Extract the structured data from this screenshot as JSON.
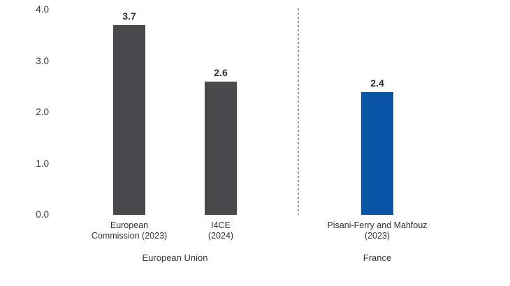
{
  "chart_data": {
    "type": "bar",
    "title": "",
    "xlabel": "",
    "ylabel": "",
    "ylim": [
      0,
      4
    ],
    "yticks": [
      0,
      1,
      2,
      3,
      4
    ],
    "grid": false,
    "legend": "none",
    "value_labels_shown": true,
    "groups": [
      {
        "label": "European Union",
        "bars": [
          {
            "label": "European\nCommission (2023)",
            "value": 3.7,
            "color": "#4A4A4C"
          },
          {
            "label": "I4CE\n(2024)",
            "value": 2.6,
            "color": "#4A4A4C"
          }
        ]
      },
      {
        "label": "France",
        "bars": [
          {
            "label": "Pisani-Ferry and Mahfouz\n(2023)",
            "value": 2.4,
            "color": "#0A54A5"
          }
        ]
      }
    ],
    "separator": {
      "style": "dashed",
      "color": "#949494"
    }
  },
  "colors": {
    "background": "#FFFFFF",
    "dark_bar": "#4A4A4C",
    "blue_bar": "#0A54A5",
    "text": "#333333",
    "separator": "#949494"
  }
}
